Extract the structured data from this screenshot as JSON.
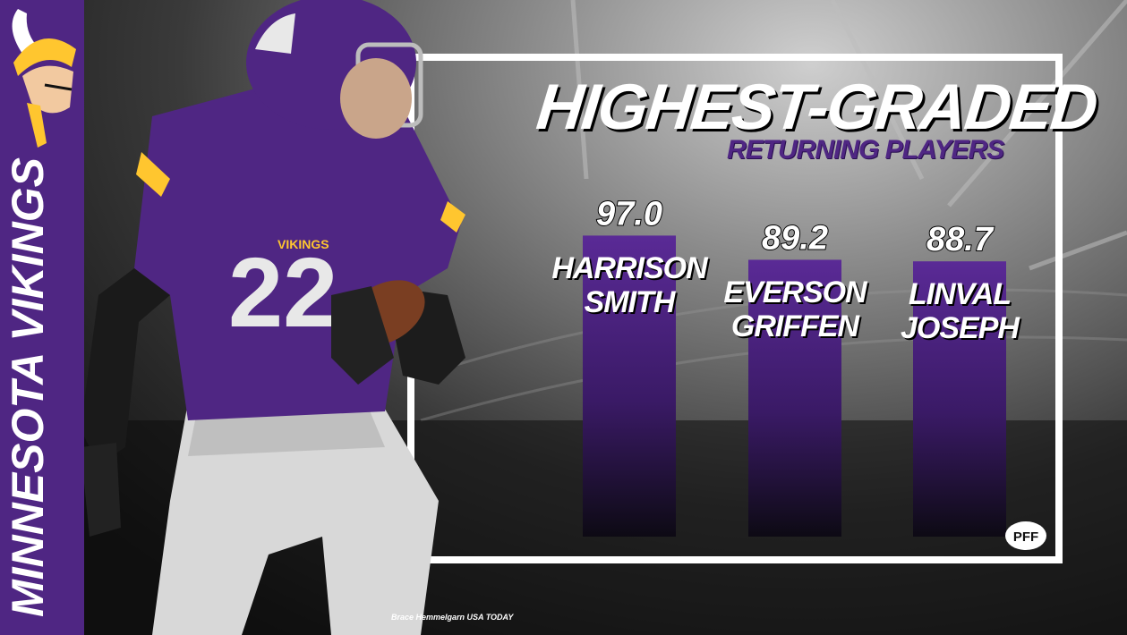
{
  "title": "HIGHEST-GRADED",
  "subtitle": "RETURNING PLAYERS",
  "team": "MINNESOTA VIKINGS",
  "credit": "Brace Hemmelgarn USA TODAY",
  "brand": "PFF",
  "jersey_number": "22",
  "jersey_wordmark": "VIKINGS",
  "colors": {
    "purple": "#4f2683",
    "gold": "#ffc62f",
    "white": "#ffffff"
  },
  "icons": [
    "vikings-logo-icon",
    "pff-logo-icon"
  ],
  "chart_data": {
    "type": "bar",
    "categories": [
      "HARRISON SMITH",
      "EVERSON GRIFFEN",
      "LINVAL JOSEPH"
    ],
    "name_lines": [
      [
        "HARRISON",
        "SMITH"
      ],
      [
        "EVERSON",
        "GRIFFEN"
      ],
      [
        "LINVAL",
        "JOSEPH"
      ]
    ],
    "values": [
      97.0,
      89.2,
      88.7
    ],
    "value_labels": [
      "97.0",
      "89.2",
      "88.7"
    ],
    "title": "HIGHEST-GRADED",
    "subtitle": "RETURNING PLAYERS"
  }
}
